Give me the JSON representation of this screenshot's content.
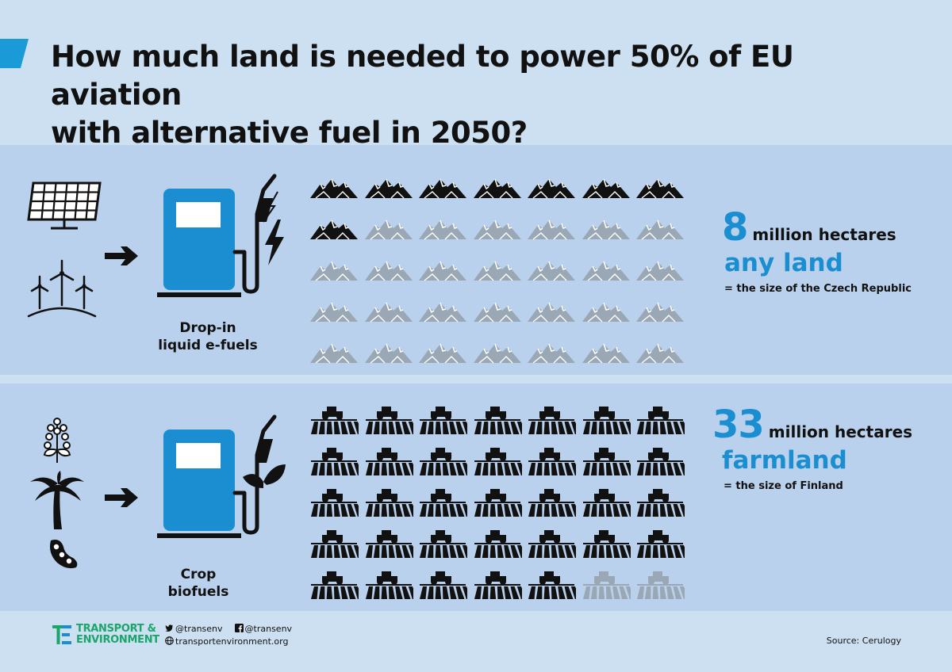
{
  "title": {
    "line1": "How much land is needed to power 50% of EU aviation",
    "line2": "with alternative fuel in 2050?"
  },
  "efuel": {
    "label_line1": "Drop-in",
    "label_line2": "liquid e-fuels",
    "icons": [
      "solar-panel-icon",
      "wind-turbine-icon",
      "arrow-right-icon",
      "fuel-pump-icon",
      "lightning-icon"
    ],
    "filled_units": 8,
    "total_units": 35,
    "unit_icon": "mountain-land-icon",
    "stat_number": "8",
    "stat_unit": "million hectares",
    "stat_kind": "any land",
    "comparison": "= the size of the Czech Republic"
  },
  "biofuel": {
    "label_line1": "Crop",
    "label_line2": "biofuels",
    "icons": [
      "plant-branch-icon",
      "palm-tree-icon",
      "soybean-icon",
      "arrow-right-icon",
      "fuel-pump-icon",
      "leaf-icon"
    ],
    "filled_units": 33,
    "total_units": 35,
    "unit_icon": "tractor-field-icon",
    "stat_number": "33",
    "stat_unit": "million hectares",
    "stat_kind": "farmland",
    "comparison": "= the size of Finland"
  },
  "colors": {
    "accent": "#1a8ed0",
    "background": "#cde0f2",
    "band": "#b9d1ec",
    "filled_icon": "#111111",
    "empty_icon": "#9aa7b4",
    "logo_green": "#1aa56b"
  },
  "footer": {
    "logo_line1": "TRANSPORT &",
    "logo_line2": "ENVIRONMENT",
    "twitter": "@transenv",
    "facebook": "@transenv",
    "website": "transportenvironment.org",
    "source": "Source: Cerulogy"
  }
}
